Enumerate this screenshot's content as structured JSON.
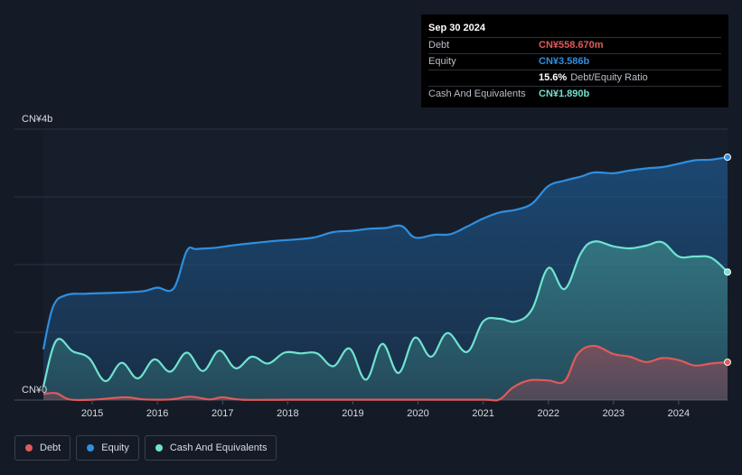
{
  "tooltip": {
    "date": "Sep 30 2024",
    "rows": [
      {
        "label": "Debt",
        "value": "CN¥558.670m",
        "color": "#e05a5a"
      },
      {
        "label": "Equity",
        "value": "CN¥3.586b",
        "color": "#2f8fe0"
      },
      {
        "ratio_pct": "15.6%",
        "ratio_label": "Debt/Equity Ratio"
      },
      {
        "label": "Cash And Equivalents",
        "value": "CN¥1.890b",
        "color": "#6fe3cf"
      }
    ]
  },
  "legend": [
    {
      "label": "Debt",
      "color": "#e05a5a"
    },
    {
      "label": "Equity",
      "color": "#2f8fe0"
    },
    {
      "label": "Cash And Equivalents",
      "color": "#6fe3cf"
    }
  ],
  "chart_data": {
    "type": "area",
    "y_axis_labels": [
      "CN¥4b",
      "CN¥0"
    ],
    "ylim": [
      0,
      4000
    ],
    "xlim": [
      2014.25,
      2024.75
    ],
    "x_ticks": [
      "2015",
      "2016",
      "2017",
      "2018",
      "2019",
      "2020",
      "2021",
      "2022",
      "2023",
      "2024"
    ],
    "grid": true,
    "units": "CN¥ millions",
    "series": [
      {
        "name": "Equity",
        "color": "#2f8fe0",
        "points": [
          [
            2014.25,
            750
          ],
          [
            2014.4,
            1380
          ],
          [
            2014.6,
            1550
          ],
          [
            2014.9,
            1570
          ],
          [
            2015.2,
            1580
          ],
          [
            2015.5,
            1590
          ],
          [
            2015.8,
            1610
          ],
          [
            2016.0,
            1660
          ],
          [
            2016.25,
            1650
          ],
          [
            2016.45,
            2200
          ],
          [
            2016.6,
            2230
          ],
          [
            2016.9,
            2250
          ],
          [
            2017.2,
            2290
          ],
          [
            2017.5,
            2320
          ],
          [
            2017.8,
            2350
          ],
          [
            2018.1,
            2370
          ],
          [
            2018.4,
            2400
          ],
          [
            2018.7,
            2480
          ],
          [
            2019.0,
            2500
          ],
          [
            2019.25,
            2530
          ],
          [
            2019.5,
            2540
          ],
          [
            2019.75,
            2570
          ],
          [
            2019.95,
            2400
          ],
          [
            2020.25,
            2440
          ],
          [
            2020.5,
            2450
          ],
          [
            2020.75,
            2560
          ],
          [
            2021.0,
            2680
          ],
          [
            2021.25,
            2770
          ],
          [
            2021.5,
            2810
          ],
          [
            2021.75,
            2900
          ],
          [
            2022.0,
            3160
          ],
          [
            2022.25,
            3240
          ],
          [
            2022.5,
            3300
          ],
          [
            2022.7,
            3360
          ],
          [
            2023.0,
            3350
          ],
          [
            2023.25,
            3390
          ],
          [
            2023.5,
            3420
          ],
          [
            2023.75,
            3440
          ],
          [
            2024.0,
            3490
          ],
          [
            2024.25,
            3540
          ],
          [
            2024.5,
            3550
          ],
          [
            2024.75,
            3586
          ]
        ]
      },
      {
        "name": "Cash And Equivalents",
        "color": "#6fe3cf",
        "points": [
          [
            2014.25,
            200
          ],
          [
            2014.45,
            880
          ],
          [
            2014.7,
            720
          ],
          [
            2014.95,
            620
          ],
          [
            2015.2,
            280
          ],
          [
            2015.45,
            550
          ],
          [
            2015.7,
            320
          ],
          [
            2015.95,
            600
          ],
          [
            2016.2,
            420
          ],
          [
            2016.45,
            700
          ],
          [
            2016.7,
            430
          ],
          [
            2016.95,
            730
          ],
          [
            2017.2,
            470
          ],
          [
            2017.45,
            640
          ],
          [
            2017.7,
            540
          ],
          [
            2017.95,
            700
          ],
          [
            2018.2,
            690
          ],
          [
            2018.45,
            690
          ],
          [
            2018.7,
            500
          ],
          [
            2018.95,
            760
          ],
          [
            2019.2,
            300
          ],
          [
            2019.45,
            830
          ],
          [
            2019.7,
            400
          ],
          [
            2019.95,
            920
          ],
          [
            2020.2,
            640
          ],
          [
            2020.45,
            990
          ],
          [
            2020.75,
            710
          ],
          [
            2021.0,
            1160
          ],
          [
            2021.25,
            1200
          ],
          [
            2021.5,
            1160
          ],
          [
            2021.75,
            1340
          ],
          [
            2022.0,
            1950
          ],
          [
            2022.25,
            1640
          ],
          [
            2022.5,
            2170
          ],
          [
            2022.7,
            2340
          ],
          [
            2023.0,
            2270
          ],
          [
            2023.25,
            2240
          ],
          [
            2023.5,
            2280
          ],
          [
            2023.75,
            2330
          ],
          [
            2024.0,
            2120
          ],
          [
            2024.25,
            2120
          ],
          [
            2024.5,
            2100
          ],
          [
            2024.75,
            1890
          ]
        ]
      },
      {
        "name": "Debt",
        "color": "#e05a5a",
        "points": [
          [
            2014.25,
            90
          ],
          [
            2014.45,
            100
          ],
          [
            2014.65,
            10
          ],
          [
            2015.0,
            5
          ],
          [
            2015.5,
            40
          ],
          [
            2015.8,
            10
          ],
          [
            2016.2,
            10
          ],
          [
            2016.5,
            50
          ],
          [
            2016.8,
            10
          ],
          [
            2017.0,
            40
          ],
          [
            2017.3,
            5
          ],
          [
            2018.0,
            5
          ],
          [
            2019.0,
            5
          ],
          [
            2020.0,
            5
          ],
          [
            2021.0,
            5
          ],
          [
            2021.25,
            10
          ],
          [
            2021.45,
            180
          ],
          [
            2021.7,
            290
          ],
          [
            2022.0,
            290
          ],
          [
            2022.25,
            280
          ],
          [
            2022.45,
            680
          ],
          [
            2022.7,
            800
          ],
          [
            2023.0,
            680
          ],
          [
            2023.25,
            640
          ],
          [
            2023.5,
            560
          ],
          [
            2023.75,
            620
          ],
          [
            2024.0,
            590
          ],
          [
            2024.25,
            510
          ],
          [
            2024.5,
            540
          ],
          [
            2024.75,
            558.67
          ]
        ]
      }
    ]
  }
}
